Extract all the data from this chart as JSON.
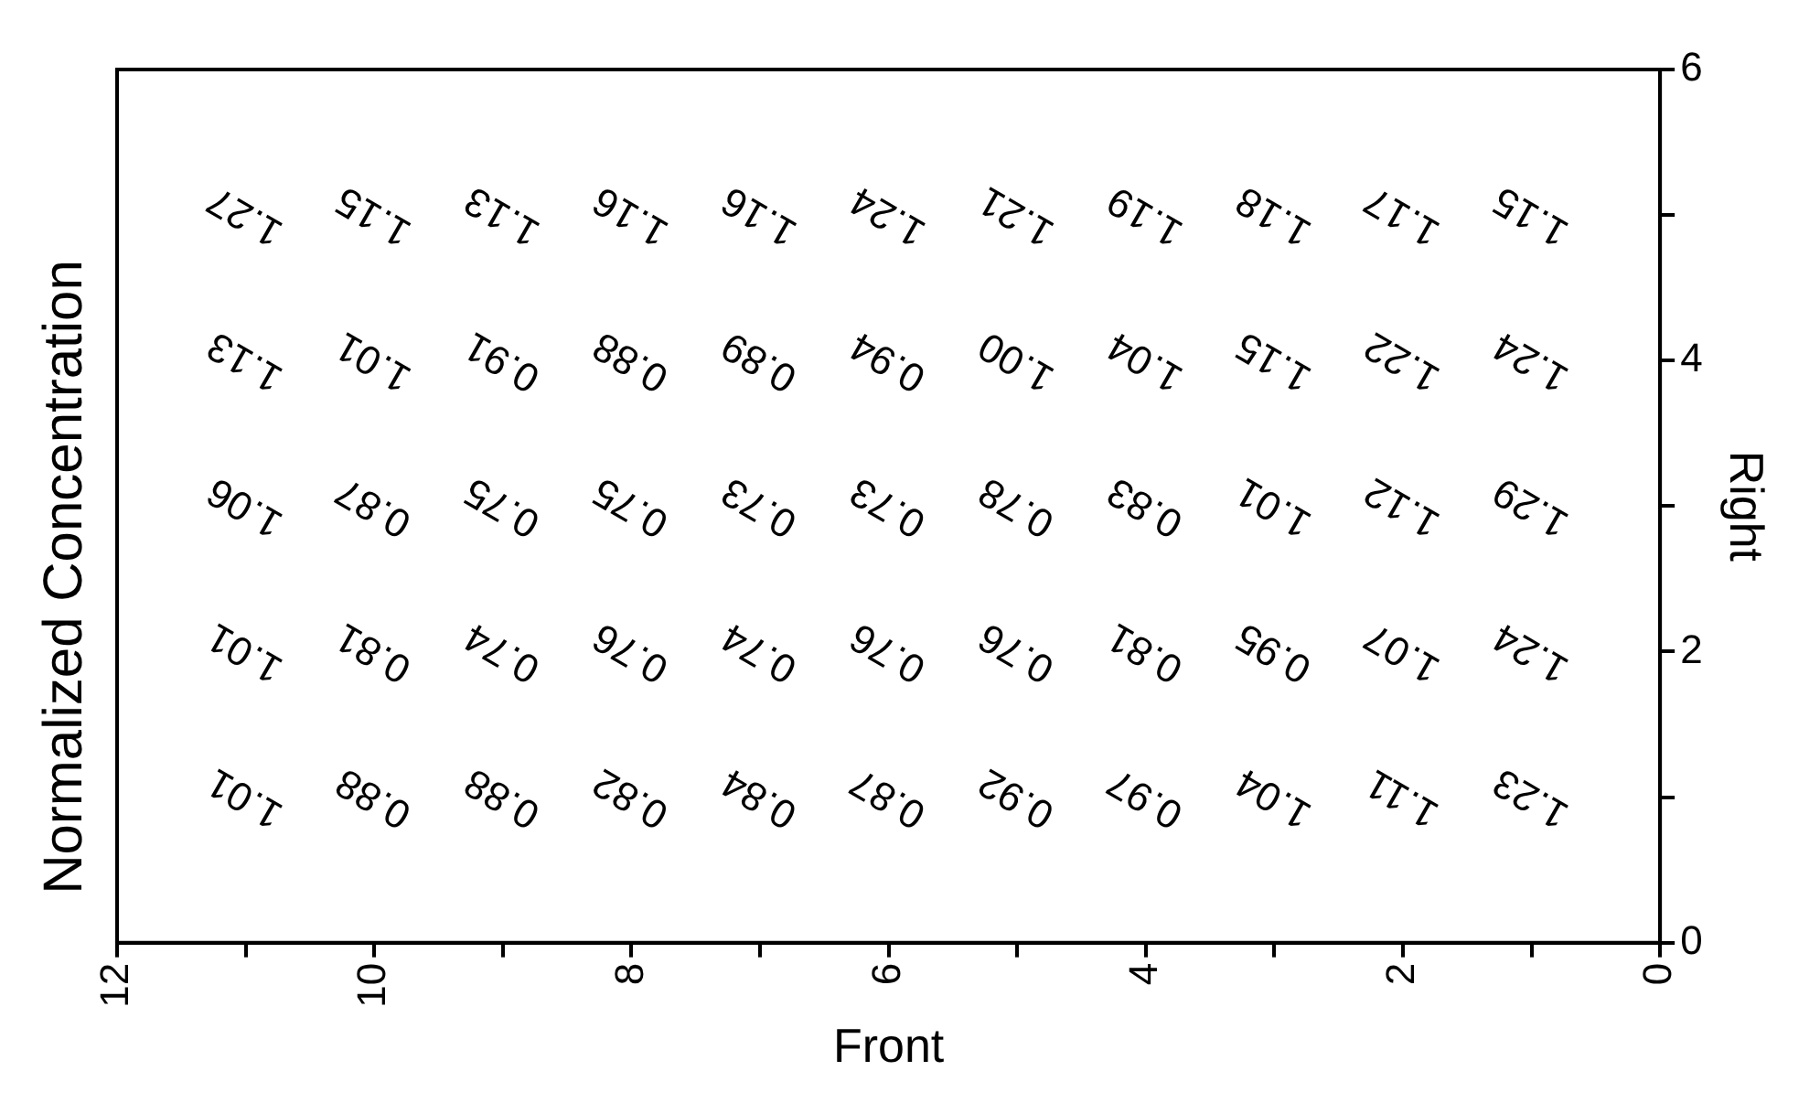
{
  "chart_data": {
    "type": "heatmap",
    "title": "Normalized Concentration",
    "xlabel": "Front",
    "ylabel": "Right",
    "xlim": [
      12,
      0
    ],
    "xticks": [
      0,
      {
        "value": 1,
        "label": null
      },
      2,
      {
        "value": 3,
        "label": null
      },
      4,
      {
        "value": 5,
        "label": null
      },
      6,
      {
        "value": 7,
        "label": null
      },
      8,
      {
        "value": 9,
        "label": null
      },
      10,
      {
        "value": 11,
        "label": null
      },
      12
    ],
    "ylim": [
      0,
      6
    ],
    "yticks": [
      0,
      {
        "value": 1,
        "label": null
      },
      2,
      {
        "value": 3,
        "label": null
      },
      4,
      {
        "value": 5,
        "label": null
      },
      6
    ],
    "x": [
      11,
      10,
      9,
      8,
      7,
      6,
      5,
      4,
      3,
      2,
      1
    ],
    "cells": [
      [
        1.27,
        1.15,
        1.13,
        1.16,
        1.16,
        1.24,
        1.21,
        1.19,
        1.18,
        1.17,
        1.15
      ],
      [
        1.13,
        1.01,
        0.91,
        0.88,
        0.89,
        0.94,
        1.0,
        1.04,
        1.15,
        1.22,
        1.24
      ],
      [
        1.06,
        0.87,
        0.75,
        0.75,
        0.73,
        0.73,
        0.78,
        0.83,
        1.01,
        1.12,
        1.29
      ],
      [
        1.01,
        0.81,
        0.74,
        0.76,
        0.74,
        0.76,
        0.76,
        0.81,
        0.95,
        1.07,
        1.24
      ],
      [
        1.01,
        0.88,
        0.88,
        0.82,
        0.84,
        0.87,
        0.92,
        0.97,
        1.04,
        1.11,
        1.23
      ]
    ],
    "cell_labels": [
      [
        "1.27",
        "1.15",
        "1.13",
        "1.16",
        "1.16",
        "1.24",
        "1.21",
        "1.19",
        "1.18",
        "1.17",
        "1.15"
      ],
      [
        "1.13",
        "1.01",
        "0.91",
        "0.88",
        "0.89",
        "0.94",
        "1.00",
        "1.04",
        "1.15",
        "1.22",
        "1.24"
      ],
      [
        "1.06",
        "0.87",
        "0.75",
        "0.75",
        "0.73",
        "0.73",
        "0.78",
        "0.83",
        "1.01",
        "1.12",
        "1.29"
      ],
      [
        "1.01",
        "0.81",
        "0.74",
        "0.76",
        "0.74",
        "0.76",
        "0.76",
        "0.81",
        "0.95",
        "1.07",
        "1.24"
      ],
      [
        "1.01",
        "0.88",
        "0.88",
        "0.82",
        "0.84",
        "0.87",
        "0.92",
        "0.97",
        "1.04",
        "1.11",
        "1.23"
      ]
    ]
  }
}
